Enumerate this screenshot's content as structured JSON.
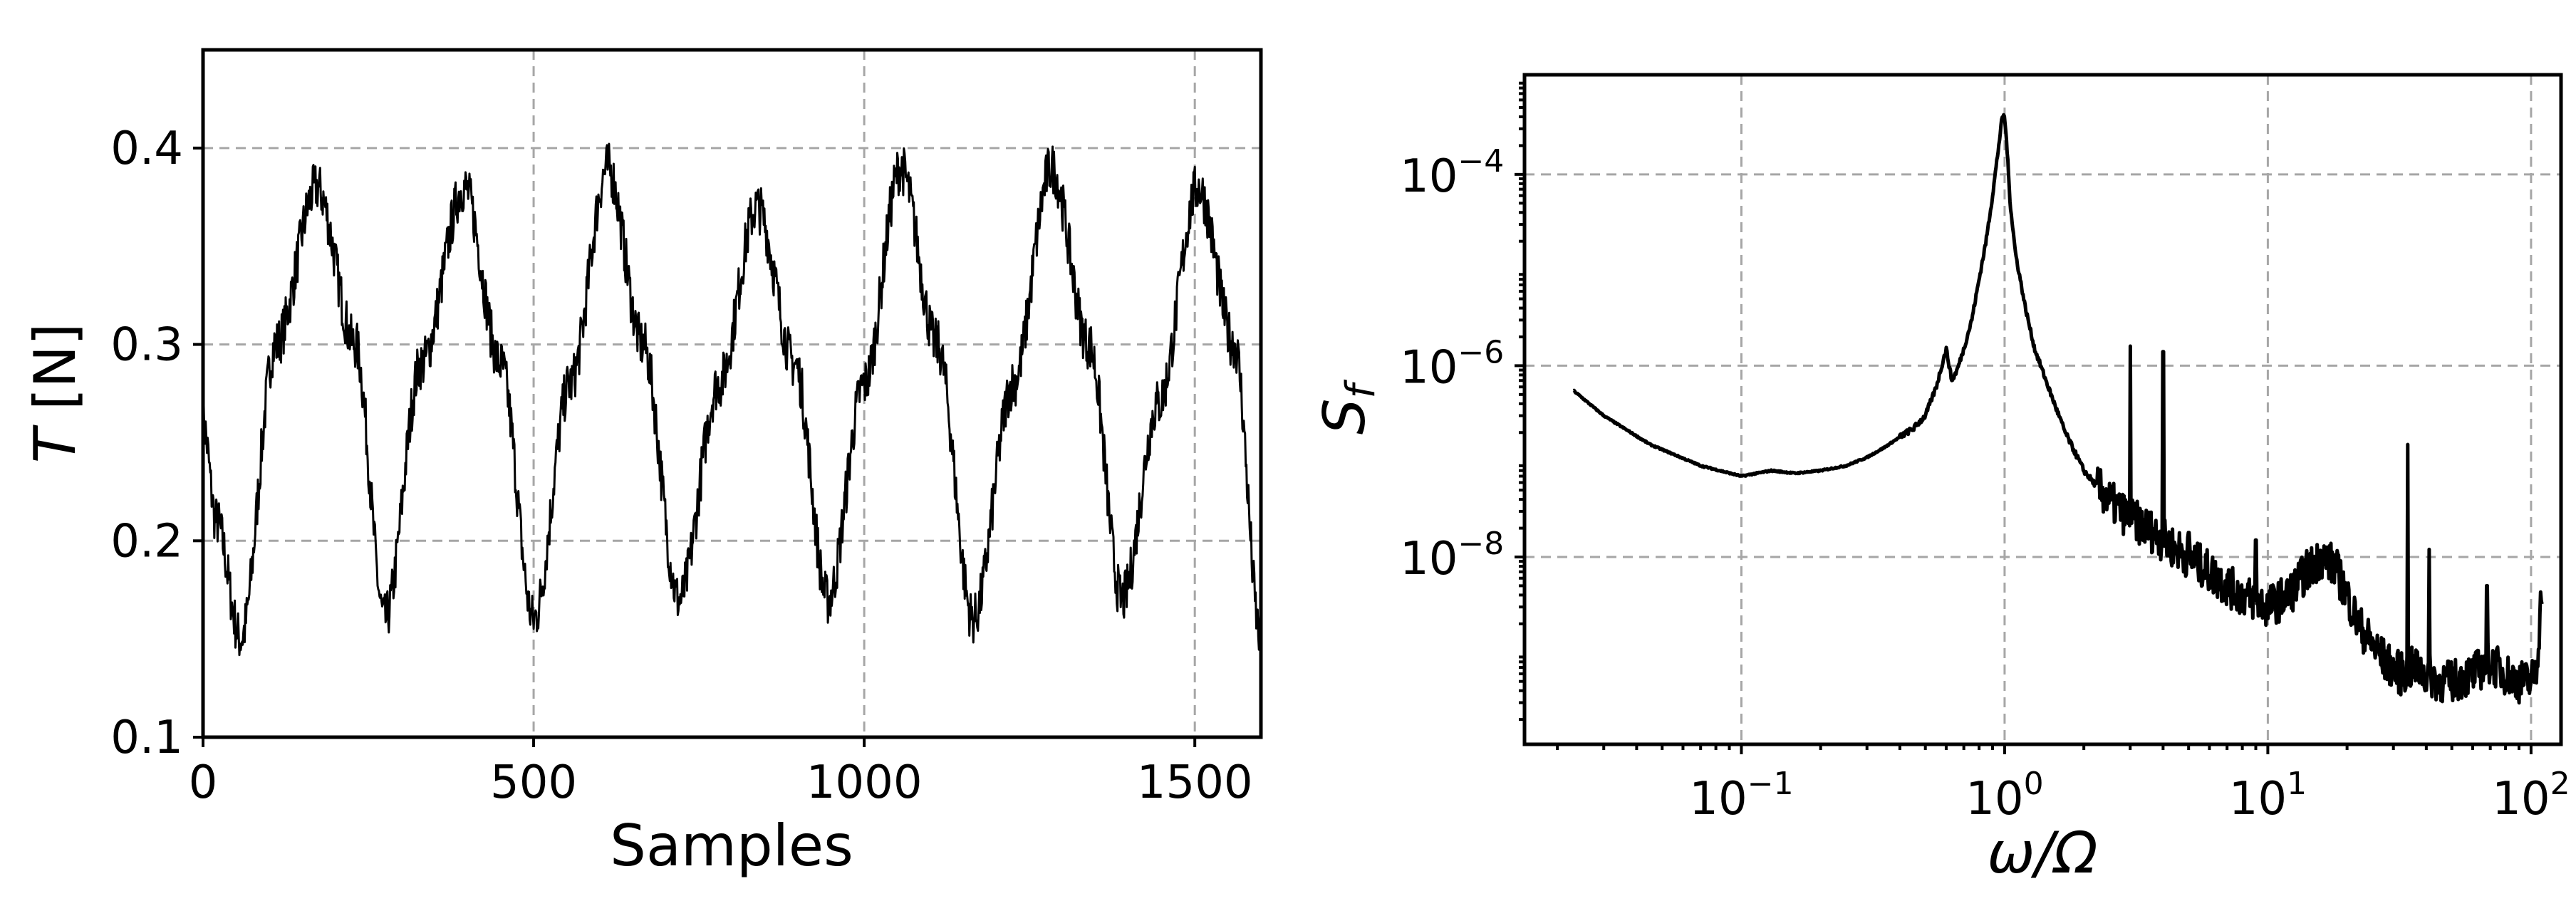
{
  "chart_data": [
    {
      "type": "line",
      "xlabel": "Samples",
      "ylabel_italic": "T",
      "ylabel_unit": "[N]",
      "xlim": [
        0,
        1600
      ],
      "ylim": [
        0.1,
        0.45
      ],
      "xticks": [
        0,
        500,
        1000,
        1500
      ],
      "xtick_labels": [
        "0",
        "500",
        "1000",
        "1500"
      ],
      "yticks": [
        0.1,
        0.2,
        0.3,
        0.4
      ],
      "ytick_labels": [
        "0.1",
        "0.2",
        "0.3",
        "0.4"
      ],
      "grid": true,
      "series": [
        {
          "color": "#000000",
          "x": [
            0,
            20,
            57,
            110,
            172,
            230,
            275,
            330,
            395,
            450,
            500,
            555,
            612,
            665,
            720,
            780,
            838,
            895,
            945,
            1000,
            1055,
            1110,
            1165,
            1225,
            1283,
            1340,
            1390,
            1445,
            1505,
            1560,
            1600
          ],
          "y": [
            0.26,
            0.21,
            0.15,
            0.3,
            0.38,
            0.3,
            0.16,
            0.29,
            0.38,
            0.29,
            0.16,
            0.28,
            0.39,
            0.3,
            0.17,
            0.28,
            0.37,
            0.29,
            0.17,
            0.28,
            0.39,
            0.3,
            0.16,
            0.28,
            0.39,
            0.3,
            0.17,
            0.27,
            0.38,
            0.3,
            0.15
          ]
        }
      ]
    },
    {
      "type": "line",
      "xscale": "log",
      "yscale": "log",
      "xlabel": "ω/Ω",
      "ylabel_main": "S",
      "ylabel_sub": "f",
      "xlim": [
        0.015,
        130
      ],
      "ylim": [
        1.1e-10,
        0.0011
      ],
      "xticks": [
        0.1,
        1,
        10,
        100
      ],
      "xtick_base": "10",
      "xtick_exps": [
        "−1",
        "0",
        "1",
        "2"
      ],
      "yticks": [
        1e-08,
        1e-06,
        0.0001
      ],
      "ytick_base": "10",
      "ytick_exps": [
        "−8",
        "−6",
        "−4"
      ],
      "grid": true,
      "series": [
        {
          "color": "#000000",
          "x": [
            0.023,
            0.03,
            0.045,
            0.07,
            0.1,
            0.13,
            0.16,
            0.2,
            0.25,
            0.3,
            0.35,
            0.4,
            0.45,
            0.5,
            0.55,
            0.6,
            0.63,
            0.66,
            0.7,
            0.75,
            0.8,
            0.85,
            0.9,
            0.95,
            0.98,
            1.0,
            1.02,
            1.05,
            1.1,
            1.2,
            1.3,
            1.5,
            1.7,
            2.0,
            2.3,
            2.6,
            3.0,
            3.5,
            4.0,
            5.0,
            6.0,
            7.0,
            8.0,
            9.0,
            10.0,
            12.0,
            14.0,
            16.0,
            18.0,
            20.0,
            22.0,
            25.0,
            28.0,
            32.0,
            36.0,
            40.0,
            45.0,
            50.0,
            60.0,
            70.0,
            80.0,
            90.0,
            100.0,
            105.0,
            110.0
          ],
          "y": [
            5.5e-07,
            3e-07,
            1.5e-07,
            9e-08,
            7e-08,
            8e-08,
            7.5e-08,
            8e-08,
            9e-08,
            1.1e-07,
            1.4e-07,
            1.8e-07,
            2.2e-07,
            3e-07,
            6e-07,
            1.5e-06,
            7e-07,
            9e-07,
            1.5e-06,
            3e-06,
            8e-06,
            2e-05,
            6e-05,
            0.0002,
            0.0004,
            0.0004,
            0.0002,
            5e-05,
            1.5e-05,
            4e-06,
            1.5e-06,
            5e-07,
            2e-07,
            8e-08,
            5e-08,
            3.5e-08,
            2.5e-08,
            2e-08,
            1.5e-08,
            1e-08,
            7e-09,
            5e-09,
            4e-09,
            3.5e-09,
            3e-09,
            4e-09,
            7e-09,
            1e-08,
            8e-09,
            4e-09,
            2e-09,
            1.2e-09,
            8e-10,
            6e-10,
            7e-10,
            6e-10,
            5e-10,
            5e-10,
            6e-10,
            8e-10,
            6e-10,
            5e-10,
            5e-10,
            7e-10,
            5e-09
          ]
        }
      ],
      "spikes": [
        {
          "x": 2.5,
          "y": 2.5e-08
        },
        {
          "x": 3.0,
          "y": 1.6e-06
        },
        {
          "x": 4.0,
          "y": 1.4e-06
        },
        {
          "x": 5.0,
          "y": 1.8e-08
        },
        {
          "x": 9.0,
          "y": 1.5e-08
        },
        {
          "x": 34.0,
          "y": 1.5e-07
        },
        {
          "x": 41.0,
          "y": 1.2e-08
        },
        {
          "x": 68.0,
          "y": 5e-09
        }
      ]
    }
  ]
}
